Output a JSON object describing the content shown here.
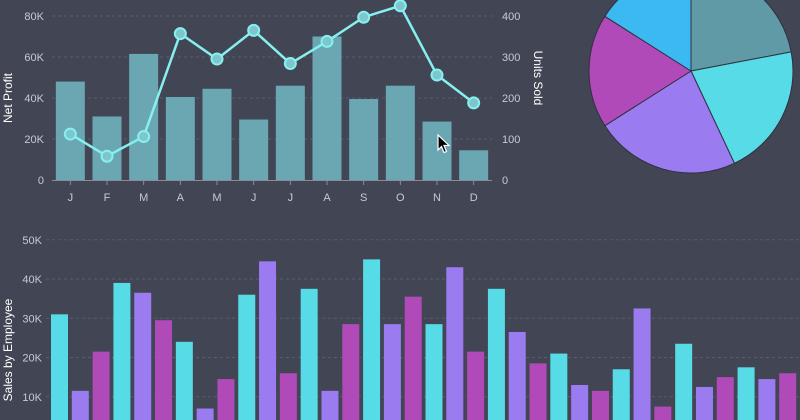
{
  "colors": {
    "background": "#424553",
    "bar_teal": "#6aa7b3",
    "line_cyan": "#86f0f0",
    "cyan": "#57dbe6",
    "magenta": "#b04ab8",
    "violet": "#9b7cf0",
    "sky": "#3db9f2",
    "slate": "#5f9aa6"
  },
  "chart_data": [
    {
      "type": "bar+line",
      "categories": [
        "J",
        "F",
        "M",
        "A",
        "M",
        "J",
        "J",
        "A",
        "S",
        "O",
        "N",
        "D"
      ],
      "series": [
        {
          "axis": "left",
          "type": "bar",
          "values": [
            48000,
            31000,
            61500,
            40500,
            44500,
            29500,
            46000,
            70000,
            39500,
            46000,
            28500,
            14500
          ]
        },
        {
          "axis": "right",
          "type": "line",
          "values": [
            112,
            58,
            106,
            357,
            295,
            365,
            284,
            338,
            397,
            425,
            256,
            188
          ]
        }
      ],
      "ylabel": "Net Profit",
      "y2label": "Units Sold",
      "ylim": [
        0,
        80000
      ],
      "y2lim": [
        0,
        400
      ],
      "yticks": [
        "0",
        "20K",
        "40K",
        "60K",
        "80K"
      ],
      "y2ticks": [
        "0",
        "100",
        "200",
        "300",
        "400"
      ],
      "grid": true
    },
    {
      "type": "pie",
      "values": [
        22,
        21,
        23,
        18,
        16
      ],
      "slice_colors": [
        "#5f9aa6",
        "#57dbe6",
        "#9b7cf0",
        "#b04ab8",
        "#3db9f2"
      ]
    },
    {
      "type": "bar",
      "ylabel": "Sales by Employee",
      "ylim": [
        0,
        50000
      ],
      "yticks": [
        "10K",
        "20K",
        "30K",
        "40K",
        "50K"
      ],
      "grid": true,
      "values": [
        31000,
        11500,
        21500,
        39000,
        36500,
        29500,
        24000,
        7000,
        14500,
        36000,
        44500,
        16000,
        37500,
        11500,
        28500,
        45000,
        28500,
        35500,
        28500,
        43000,
        21500,
        37500,
        26500,
        18500,
        21000,
        13000,
        11500,
        17000,
        32500,
        7500,
        23500,
        12500,
        15000,
        17500,
        14500,
        16000
      ],
      "bar_colors": [
        "#57dbe6",
        "#9b7cf0",
        "#b04ab8",
        "#57dbe6",
        "#9b7cf0",
        "#b04ab8",
        "#57dbe6",
        "#9b7cf0",
        "#b04ab8",
        "#57dbe6",
        "#9b7cf0",
        "#b04ab8",
        "#57dbe6",
        "#9b7cf0",
        "#b04ab8",
        "#57dbe6",
        "#9b7cf0",
        "#b04ab8",
        "#57dbe6",
        "#9b7cf0",
        "#b04ab8",
        "#57dbe6",
        "#9b7cf0",
        "#b04ab8",
        "#57dbe6",
        "#9b7cf0",
        "#b04ab8",
        "#57dbe6",
        "#9b7cf0",
        "#b04ab8",
        "#57dbe6",
        "#9b7cf0",
        "#b04ab8",
        "#57dbe6",
        "#9b7cf0",
        "#b04ab8"
      ]
    }
  ]
}
